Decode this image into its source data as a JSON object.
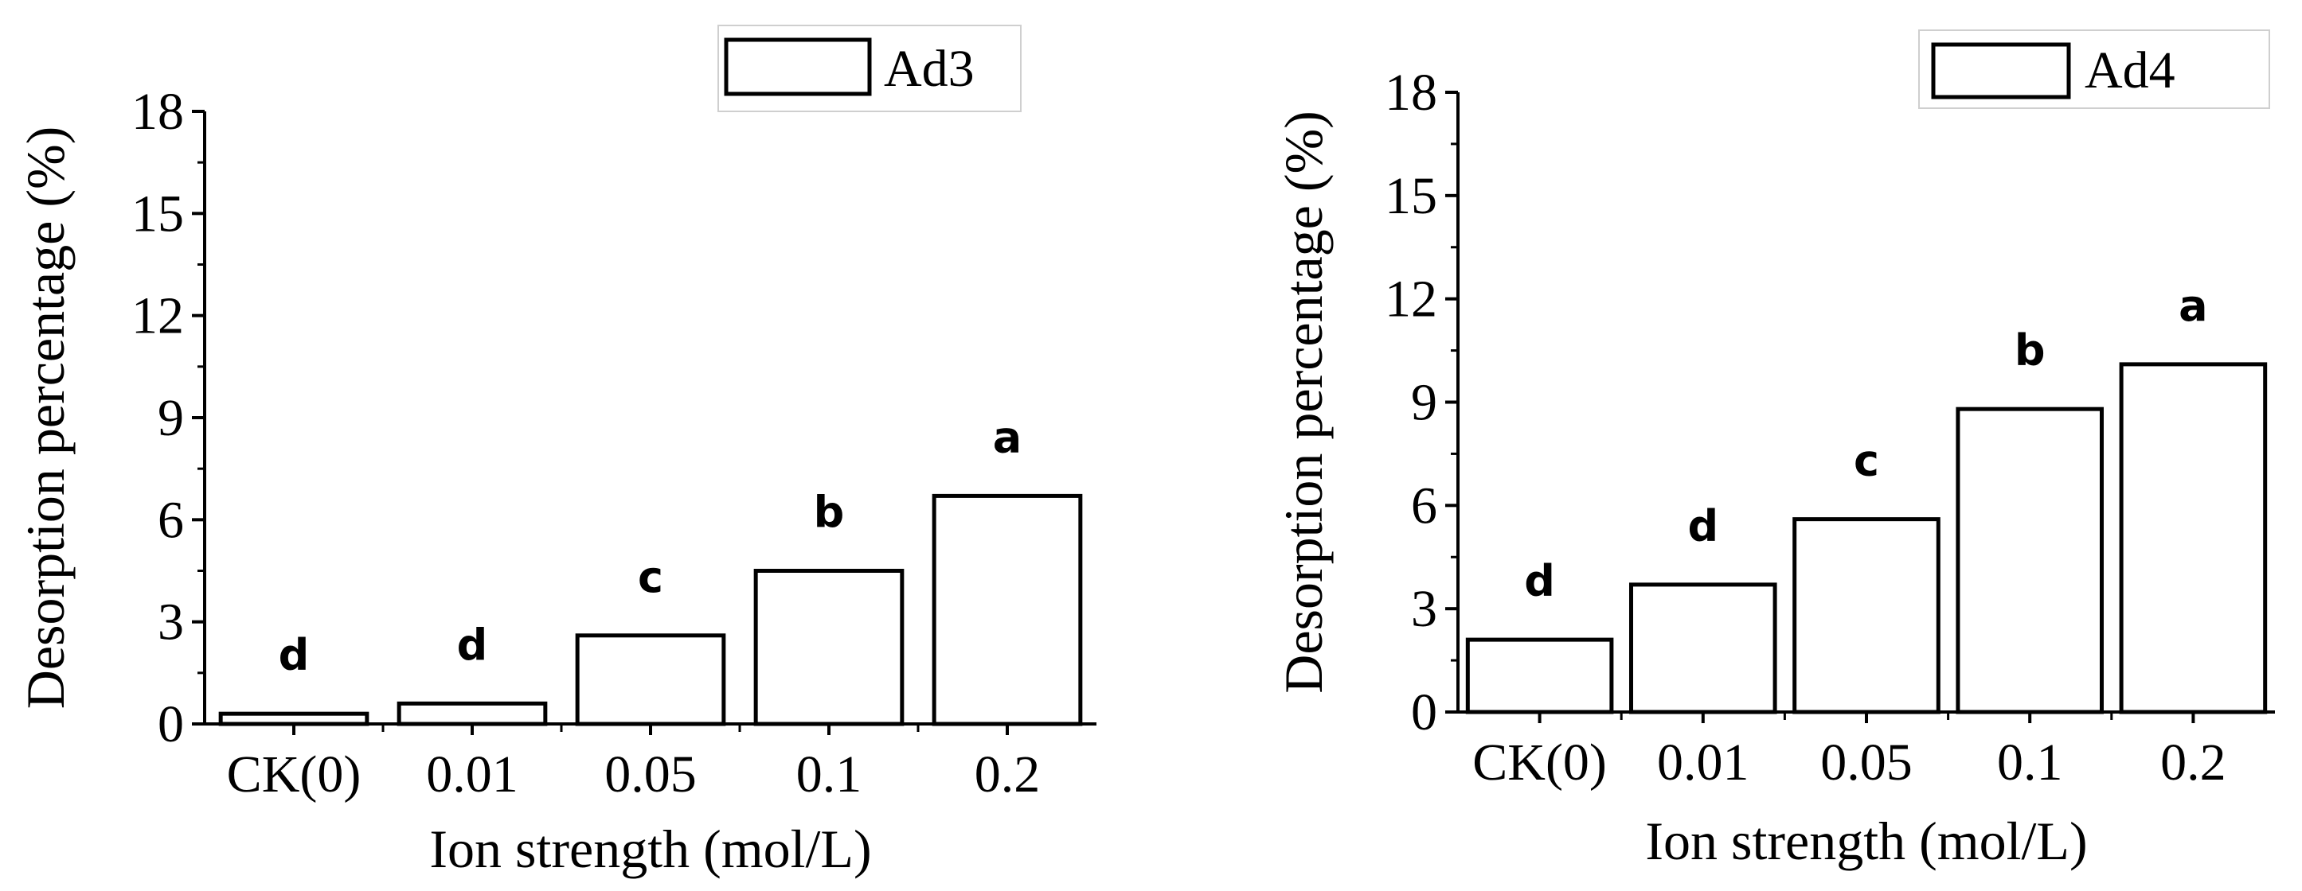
{
  "chart_data": [
    {
      "type": "bar",
      "categories": [
        "CK(0)",
        "0.01",
        "0.05",
        "0.1",
        "0.2"
      ],
      "series": [
        {
          "name": "Ad3",
          "values": [
            0.3,
            0.6,
            2.6,
            4.5,
            6.7
          ]
        }
      ],
      "significance_letters": [
        "d",
        "d",
        "c",
        "b",
        "a"
      ],
      "xlabel": "Ion strength (mol/L)",
      "ylabel": "Desorption percentage (%)",
      "ylim": [
        0,
        18
      ],
      "yticks": [
        0,
        3,
        6,
        9,
        12,
        15,
        18
      ],
      "legend": "top-right",
      "grid": false
    },
    {
      "type": "bar",
      "categories": [
        "CK(0)",
        "0.01",
        "0.05",
        "0.1",
        "0.2"
      ],
      "series": [
        {
          "name": "Ad4",
          "values": [
            2.1,
            3.7,
            5.6,
            8.8,
            10.1
          ]
        }
      ],
      "significance_letters": [
        "d",
        "d",
        "c",
        "b",
        "a"
      ],
      "xlabel": "Ion strength (mol/L)",
      "ylabel": "Desorption percentage (%)",
      "ylim": [
        0,
        18
      ],
      "yticks": [
        0,
        3,
        6,
        9,
        12,
        15,
        18
      ],
      "legend": "top-right",
      "grid": false
    }
  ]
}
